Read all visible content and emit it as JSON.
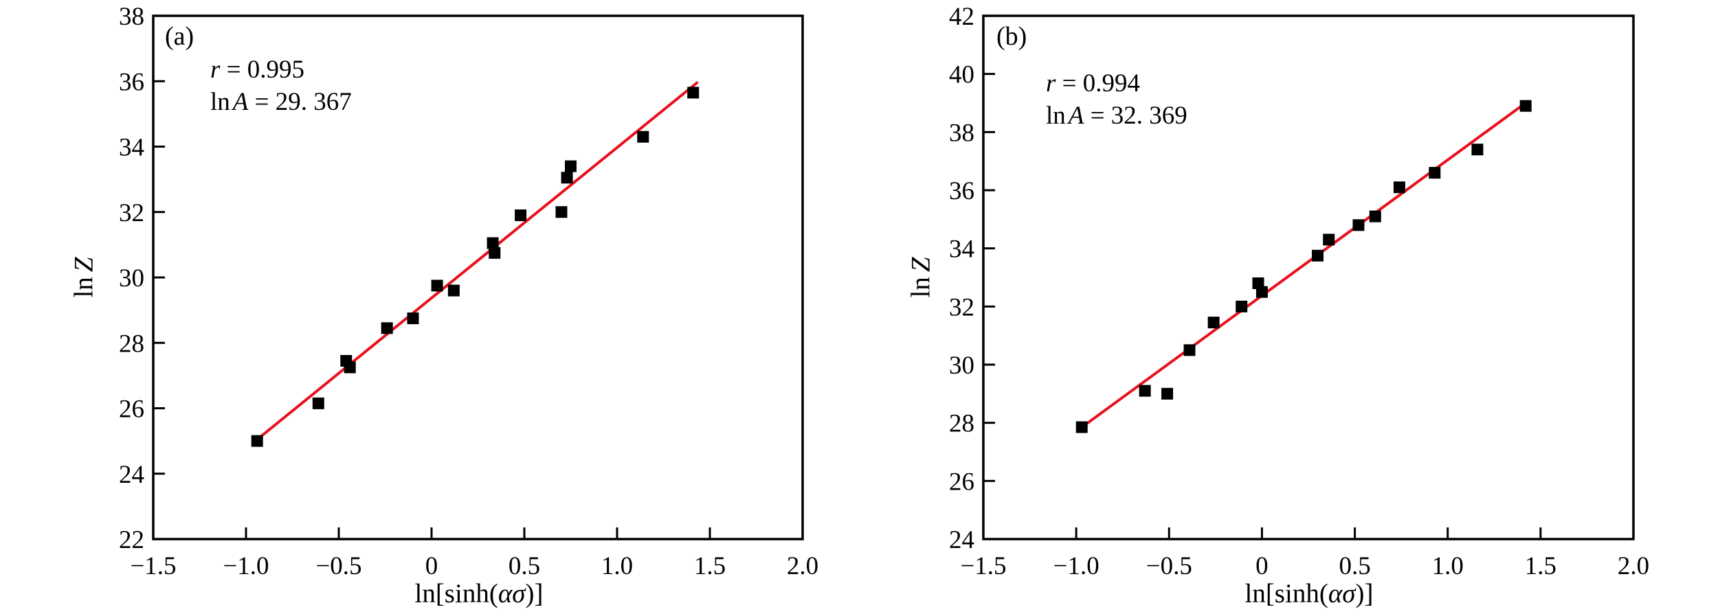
{
  "figure": {
    "background": "#ffffff"
  },
  "colors": {
    "frame": "#000000",
    "marker": "#000000",
    "fit_line": "#e8101c",
    "text": "#000000"
  },
  "chart_data": [
    {
      "type": "scatter",
      "panel_tag": "(a)",
      "stats": {
        "line1": {
          "italic": "r",
          "rest": " = 0.995"
        },
        "line2": {
          "prefix": "ln",
          "italic": "A",
          "rest": " = 29. 367"
        }
      },
      "xlabel": {
        "full": "ln[sinh(ασ)]",
        "prefix": "ln[sinh(",
        "italic": "ασ",
        "suffix": ")]"
      },
      "ylabel": {
        "full": "ln Z",
        "prefix": "ln",
        "italic": "Z"
      },
      "xlim": [
        -1.5,
        2.0
      ],
      "ylim": [
        22,
        38
      ],
      "x_ticks": {
        "values": [
          -1.5,
          -1.0,
          -0.5,
          0,
          0.5,
          1.0,
          1.5,
          2.0
        ],
        "labels": [
          "−1.5",
          "−1.0",
          "−0.5",
          "0",
          "0.5",
          "1.0",
          "1.5",
          "2.0"
        ]
      },
      "y_ticks": {
        "values": [
          22,
          24,
          26,
          28,
          30,
          32,
          34,
          36,
          38
        ],
        "labels": [
          "22",
          "24",
          "26",
          "28",
          "30",
          "32",
          "34",
          "36",
          "38"
        ]
      },
      "points": [
        [
          -0.94,
          25.0
        ],
        [
          -0.61,
          26.15
        ],
        [
          -0.46,
          27.45
        ],
        [
          -0.44,
          27.25
        ],
        [
          -0.24,
          28.45
        ],
        [
          -0.1,
          28.75
        ],
        [
          0.03,
          29.75
        ],
        [
          0.12,
          29.6
        ],
        [
          0.33,
          31.05
        ],
        [
          0.34,
          30.75
        ],
        [
          0.48,
          31.9
        ],
        [
          0.7,
          32.0
        ],
        [
          0.73,
          33.05
        ],
        [
          0.75,
          33.4
        ],
        [
          1.14,
          34.3
        ],
        [
          1.41,
          35.65
        ]
      ],
      "fit_line": {
        "x": [
          -0.95,
          1.43
        ],
        "y": [
          25.0,
          35.95
        ]
      }
    },
    {
      "type": "scatter",
      "panel_tag": "(b)",
      "stats": {
        "line1": {
          "italic": "r",
          "rest": " = 0.994"
        },
        "line2": {
          "prefix": "ln",
          "italic": "A",
          "rest": " = 32. 369"
        }
      },
      "xlabel": {
        "full": "ln[sinh(ασ)]",
        "prefix": "ln[sinh(",
        "italic": "ασ",
        "suffix": ")]"
      },
      "ylabel": {
        "full": "ln Z",
        "prefix": "ln",
        "italic": "Z"
      },
      "xlim": [
        -1.5,
        2.0
      ],
      "ylim": [
        24,
        42
      ],
      "x_ticks": {
        "values": [
          -1.5,
          -1.0,
          -0.5,
          0,
          0.5,
          1.0,
          1.5,
          2.0
        ],
        "labels": [
          "−1.5",
          "−1.0",
          "−0.5",
          "0",
          "0.5",
          "1.0",
          "1.5",
          "2.0"
        ]
      },
      "y_ticks": {
        "values": [
          24,
          26,
          28,
          30,
          32,
          34,
          36,
          38,
          40,
          42
        ],
        "labels": [
          "24",
          "26",
          "28",
          "30",
          "32",
          "34",
          "36",
          "38",
          "40",
          "42"
        ]
      },
      "points": [
        [
          -0.97,
          27.85
        ],
        [
          -0.63,
          29.1
        ],
        [
          -0.51,
          29.0
        ],
        [
          -0.39,
          30.5
        ],
        [
          -0.26,
          31.45
        ],
        [
          -0.11,
          32.0
        ],
        [
          -0.02,
          32.8
        ],
        [
          0.0,
          32.5
        ],
        [
          0.3,
          33.75
        ],
        [
          0.36,
          34.3
        ],
        [
          0.52,
          34.8
        ],
        [
          0.61,
          35.1
        ],
        [
          0.74,
          36.1
        ],
        [
          0.93,
          36.6
        ],
        [
          1.16,
          37.4
        ],
        [
          1.42,
          38.9
        ]
      ],
      "fit_line": {
        "x": [
          -0.98,
          1.43
        ],
        "y": [
          27.8,
          39.05
        ]
      }
    }
  ]
}
